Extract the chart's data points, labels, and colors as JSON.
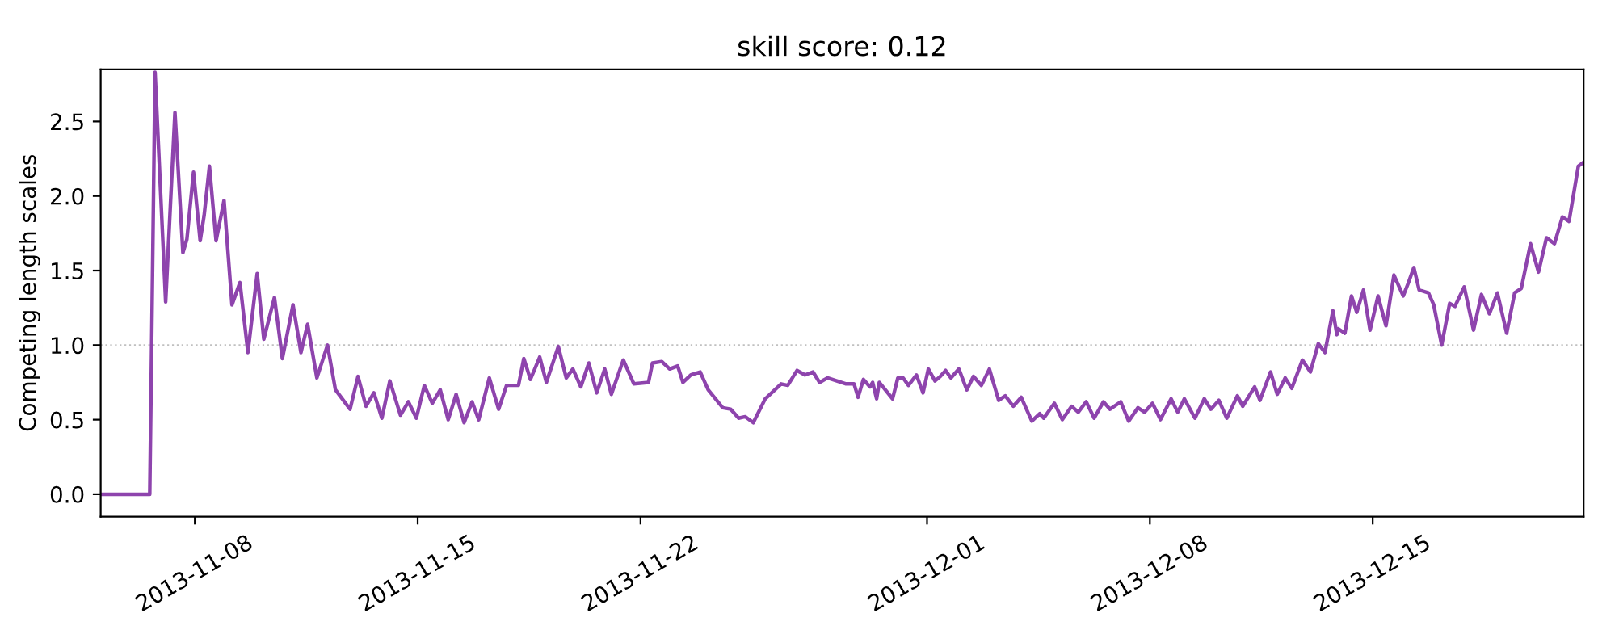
{
  "chart_data": {
    "type": "line",
    "title": "skill score: 0.12",
    "ylabel": "Competing length scales",
    "xlim": [
      "2013-11-05T01:00",
      "2013-12-21T15:00"
    ],
    "ylim": [
      -0.15,
      2.85
    ],
    "xticks": [
      "2013-11-08",
      "2013-11-15",
      "2013-11-22",
      "2013-12-01",
      "2013-12-08",
      "2013-12-15"
    ],
    "yticks": [
      {
        "value": 0,
        "label": "0.0"
      },
      0.5,
      {
        "value": 1,
        "label": "1.0"
      },
      1.5,
      {
        "value": 2,
        "label": "2.0"
      },
      2.5
    ],
    "grid": false,
    "legend": false,
    "ref_lines": [
      {
        "axis": "y",
        "value": 1,
        "color": "#c0c0c0",
        "line_style": "dotted"
      }
    ],
    "series": [
      {
        "color": "#8e44ad",
        "x": [
          "2013-11-05T01:00",
          "2013-11-06T14:00",
          "2013-11-06T18:00",
          "2013-11-07T02:00",
          "2013-11-07T09:00",
          "2013-11-07T15:00",
          "2013-11-07T18:00",
          "2013-11-07T23:00",
          "2013-11-08T04:00",
          "2013-11-08T07:00",
          "2013-11-08T11:00",
          "2013-11-08T16:00",
          "2013-11-08T22:00",
          "2013-11-09T04:00",
          "2013-11-09T10:00",
          "2013-11-09T16:00",
          "2013-11-09T23:00",
          "2013-11-10T04:00",
          "2013-11-10T12:00",
          "2013-11-10T18:00",
          "2013-11-11T02:00",
          "2013-11-11T08:00",
          "2013-11-11T13:00",
          "2013-11-11T20:00",
          "2013-11-12T04:00",
          "2013-11-12T10:00",
          "2013-11-12T21:00",
          "2013-11-13T03:00",
          "2013-11-13T09:00",
          "2013-11-13T15:00",
          "2013-11-13T21:00",
          "2013-11-14T03:00",
          "2013-11-14T11:00",
          "2013-11-14T17:00",
          "2013-11-14T23:00",
          "2013-11-15T05:00",
          "2013-11-15T11:00",
          "2013-11-15T17:00",
          "2013-11-15T23:00",
          "2013-11-16T05:00",
          "2013-11-16T11:00",
          "2013-11-16T17:00",
          "2013-11-16T22:00",
          "2013-11-17T06:00",
          "2013-11-17T13:00",
          "2013-11-17T19:00",
          "2013-11-18T04:00",
          "2013-11-18T08:00",
          "2013-11-18T13:00",
          "2013-11-18T20:00",
          "2013-11-19T01:00",
          "2013-11-19T10:00",
          "2013-11-19T16:00",
          "2013-11-19T21:00",
          "2013-11-20T03:00",
          "2013-11-20T09:00",
          "2013-11-20T15:00",
          "2013-11-20T21:00",
          "2013-11-21T02:00",
          "2013-11-21T11:00",
          "2013-11-21T19:00",
          "2013-11-22T06:00",
          "2013-11-22T09:00",
          "2013-11-22T16:00",
          "2013-11-22T22:00",
          "2013-11-23T04:00",
          "2013-11-23T08:00",
          "2013-11-23T14:00",
          "2013-11-23T21:00",
          "2013-11-24T03:00",
          "2013-11-24T14:00",
          "2013-11-24T20:00",
          "2013-11-25T02:00",
          "2013-11-25T07:00",
          "2013-11-25T13:00",
          "2013-11-25T22:00",
          "2013-11-26T10:00",
          "2013-11-26T15:00",
          "2013-11-26T22:00",
          "2013-11-27T04:00",
          "2013-11-27T10:00",
          "2013-11-27T15:00",
          "2013-11-27T21:00",
          "2013-11-28T11:00",
          "2013-11-28T17:00",
          "2013-11-28T20:00",
          "2013-11-29T00:00",
          "2013-11-29T05:00",
          "2013-11-29T07:00",
          "2013-11-29T10:00",
          "2013-11-29T12:00",
          "2013-11-29T22:00",
          "2013-11-30T02:00",
          "2013-11-30T06:00",
          "2013-11-30T10:00",
          "2013-11-30T16:00",
          "2013-11-30T21:00",
          "2013-12-01T01:00",
          "2013-12-01T06:00",
          "2013-12-01T10:00",
          "2013-12-01T14:00",
          "2013-12-01T18:00",
          "2013-12-02T00:00",
          "2013-12-02T06:00",
          "2013-12-02T11:00",
          "2013-12-02T17:00",
          "2013-12-02T23:00",
          "2013-12-03T06:00",
          "2013-12-03T11:00",
          "2013-12-03T17:00",
          "2013-12-03T23:00",
          "2013-12-04T07:00",
          "2013-12-04T13:00",
          "2013-12-04T16:00",
          "2013-12-05T00:00",
          "2013-12-05T06:00",
          "2013-12-05T13:00",
          "2013-12-05T18:00",
          "2013-12-06T00:00",
          "2013-12-06T06:00",
          "2013-12-06T13:00",
          "2013-12-06T18:00",
          "2013-12-07T02:00",
          "2013-12-07T08:00",
          "2013-12-07T15:00",
          "2013-12-07T20:00",
          "2013-12-08T02:00",
          "2013-12-08T08:00",
          "2013-12-08T16:00",
          "2013-12-08T21:00",
          "2013-12-09T02:00",
          "2013-12-09T10:00",
          "2013-12-09T17:00",
          "2013-12-09T22:00",
          "2013-12-10T04:00",
          "2013-12-10T10:00",
          "2013-12-10T18:00",
          "2013-12-10T22:00",
          "2013-12-11T07:00",
          "2013-12-11T11:00",
          "2013-12-11T19:00",
          "2013-12-12T00:00",
          "2013-12-12T06:00",
          "2013-12-12T11:00",
          "2013-12-12T19:00",
          "2013-12-13T01:00",
          "2013-12-13T07:00",
          "2013-12-13T12:00",
          "2013-12-13T18:00",
          "2013-12-13T21:00",
          "2013-12-13T22:00",
          "2013-12-14T03:00",
          "2013-12-14T08:00",
          "2013-12-14T12:00",
          "2013-12-14T17:00",
          "2013-12-14T22:00",
          "2013-12-15T04:00",
          "2013-12-15T10:00",
          "2013-12-15T16:00",
          "2013-12-15T23:00",
          "2013-12-16T03:00",
          "2013-12-16T07:00",
          "2013-12-16T11:00",
          "2013-12-16T18:00",
          "2013-12-16T22:00",
          "2013-12-17T04:00",
          "2013-12-17T10:00",
          "2013-12-17T14:00",
          "2013-12-17T21:00",
          "2013-12-18T04:00",
          "2013-12-18T10:00",
          "2013-12-18T16:00",
          "2013-12-18T22:00",
          "2013-12-19T05:00",
          "2013-12-19T11:00",
          "2013-12-19T16:00",
          "2013-12-19T23:00",
          "2013-12-20T05:00",
          "2013-12-20T11:00",
          "2013-12-20T17:00",
          "2013-12-20T23:00",
          "2013-12-21T04:00",
          "2013-12-21T11:00",
          "2013-12-21T14:00"
        ],
        "values": [
          0.0,
          0.0,
          2.83,
          1.29,
          2.56,
          1.62,
          1.71,
          2.16,
          1.7,
          1.87,
          2.2,
          1.7,
          1.97,
          1.27,
          1.42,
          0.95,
          1.48,
          1.04,
          1.32,
          0.91,
          1.27,
          0.95,
          1.14,
          0.78,
          1.0,
          0.7,
          0.57,
          0.79,
          0.59,
          0.68,
          0.51,
          0.76,
          0.53,
          0.62,
          0.51,
          0.73,
          0.61,
          0.7,
          0.5,
          0.67,
          0.48,
          0.62,
          0.5,
          0.78,
          0.57,
          0.73,
          0.73,
          0.91,
          0.77,
          0.92,
          0.75,
          0.99,
          0.78,
          0.84,
          0.72,
          0.88,
          0.68,
          0.84,
          0.67,
          0.9,
          0.74,
          0.75,
          0.88,
          0.89,
          0.84,
          0.86,
          0.75,
          0.8,
          0.82,
          0.7,
          0.58,
          0.57,
          0.51,
          0.52,
          0.48,
          0.64,
          0.74,
          0.73,
          0.83,
          0.8,
          0.82,
          0.75,
          0.78,
          0.74,
          0.74,
          0.65,
          0.77,
          0.72,
          0.75,
          0.64,
          0.75,
          0.64,
          0.78,
          0.78,
          0.73,
          0.8,
          0.68,
          0.84,
          0.76,
          0.79,
          0.83,
          0.78,
          0.84,
          0.7,
          0.79,
          0.73,
          0.84,
          0.63,
          0.66,
          0.59,
          0.65,
          0.49,
          0.54,
          0.51,
          0.61,
          0.5,
          0.59,
          0.55,
          0.62,
          0.51,
          0.62,
          0.57,
          0.62,
          0.49,
          0.58,
          0.55,
          0.61,
          0.5,
          0.64,
          0.55,
          0.64,
          0.51,
          0.64,
          0.57,
          0.63,
          0.51,
          0.66,
          0.59,
          0.72,
          0.63,
          0.82,
          0.67,
          0.78,
          0.71,
          0.9,
          0.82,
          1.01,
          0.95,
          1.23,
          1.07,
          1.11,
          1.08,
          1.33,
          1.22,
          1.37,
          1.1,
          1.33,
          1.13,
          1.47,
          1.33,
          1.42,
          1.52,
          1.37,
          1.35,
          1.27,
          1.0,
          1.28,
          1.26,
          1.39,
          1.1,
          1.34,
          1.21,
          1.35,
          1.08,
          1.35,
          1.38,
          1.68,
          1.49,
          1.72,
          1.68,
          1.86,
          1.83,
          2.2,
          2.22
        ]
      }
    ]
  }
}
